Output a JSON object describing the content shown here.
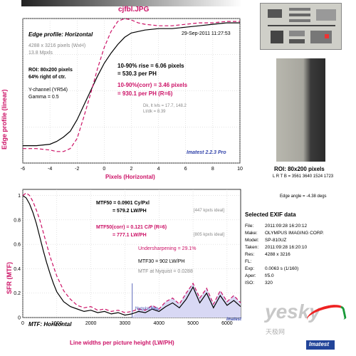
{
  "file_title": "cjfbl.JPG",
  "top_chart": {
    "heading": "Edge profile: Horizontal",
    "timestamp": "29-Sep-2011 11:27:53",
    "info": [
      "4288 x 3216 pixels (WxH)",
      "13.8 Mpxls"
    ],
    "roi_line1": "ROI: 80x200 pixels",
    "roi_line2": "64% right of ctr.",
    "channel": "Y-channel (YR54)",
    "gamma": "Gamma = 0.5",
    "rise_label": "10-90% rise = 6.06 pixels",
    "rise_ph": "= 530.3 per PH",
    "corr_label": "10-90%(corr) = 3.46 pixels",
    "corr_ph": "= 930.1 per PH  (R=6)",
    "dk_lt": "Dk, lt lvls = 17.7, 148.2",
    "lt_dk": "Lt/dk = 8.39",
    "brand": "Imatest 2.2.3 Pro"
  },
  "bottom_chart": {
    "mtf50": "MTF50 = 0.0901 Cy/Pxl",
    "mtf50_lw": "= 579.2 LW/PH",
    "mtf50_ideal": "[447 kpxls ideal]",
    "mtf50c": "MTF50(corr) = 0.121 C/P  (R=6)",
    "mtf50c_lw": "= 777.1 LW/PH",
    "mtf50c_ideal": "[805 kpxls ideal]",
    "undersharp": "Undersharpening = 29.1%",
    "mtf30": "MTF30 = 902 LW/PH",
    "nyq": "MTF at Nyquist = 0.0288",
    "nyq_label": "Nyquist freq.",
    "footer_label": "MTF: Horizontal",
    "brand": "Imatest"
  },
  "side": {
    "roi_caption": "ROI: 80x200 pixels",
    "lrtb": "L R T B = 3561 3640  1524 1723",
    "edge_angle": "Edge angle = -4.38 degs",
    "exif_title": "Selected EXIF data",
    "exif": [
      {
        "k": "File:",
        "v": "2011:09:28 16:20:12"
      },
      {
        "k": "Make:",
        "v": "OLYMPUS IMAGING CORP."
      },
      {
        "k": "Model:",
        "v": "SP-810UZ"
      },
      {
        "k": "Taken:",
        "v": "2011:09:28 16:20:10"
      },
      {
        "k": "Res:",
        "v": "4288 x 3216"
      },
      {
        "k": "FL:",
        "v": ""
      },
      {
        "k": "Exp:",
        "v": "0.0063 s  (1/160)"
      },
      {
        "k": "Aper:",
        "v": "f/5.0"
      },
      {
        "k": "ISO:",
        "v": "320"
      }
    ],
    "watermark": "yesky",
    "watermark_sub": "天极网"
  },
  "chart_data": [
    {
      "type": "line",
      "xlabel": "Pixels (Horizontal)",
      "ylabel": "Edge profile (linear)",
      "xlim": [
        -6,
        10
      ],
      "ylim": [
        0,
        1
      ],
      "xticks": [
        "-6",
        "-4",
        "-2",
        "0",
        "2",
        "4",
        "6",
        "8",
        "10"
      ],
      "grid": true,
      "series": [
        {
          "color": "#000000",
          "dash": false,
          "x": [
            -6,
            -5,
            -4,
            -3.5,
            -3,
            -2.5,
            -2,
            -1.5,
            -1,
            -0.5,
            0,
            0.5,
            1,
            1.5,
            2,
            3,
            4,
            5,
            6,
            7,
            8,
            9,
            10
          ],
          "y": [
            0.12,
            0.12,
            0.13,
            0.15,
            0.18,
            0.22,
            0.3,
            0.4,
            0.5,
            0.6,
            0.69,
            0.76,
            0.82,
            0.87,
            0.9,
            0.92,
            0.93,
            0.93,
            0.94,
            0.95,
            0.96,
            0.97,
            0.97
          ]
        },
        {
          "color": "#cc1166",
          "dash": true,
          "x": [
            -6,
            -5,
            -4,
            -3.5,
            -3,
            -2.5,
            -2,
            -1.5,
            -1,
            -0.5,
            0,
            0.5,
            1,
            1.5,
            2,
            2.5,
            3,
            4,
            5,
            6,
            7,
            8,
            9,
            10
          ],
          "y": [
            0.1,
            0.1,
            0.09,
            0.08,
            0.08,
            0.1,
            0.17,
            0.32,
            0.48,
            0.65,
            0.8,
            0.91,
            0.98,
            1.0,
            0.99,
            0.97,
            0.96,
            0.95,
            0.95,
            0.96,
            0.97,
            0.97,
            0.98,
            0.98
          ]
        }
      ]
    },
    {
      "type": "line",
      "xlabel": "Line widths per picture height (LW/PH)",
      "ylabel": "SFR (MTF)",
      "xlim": [
        0,
        6400
      ],
      "ylim": [
        0,
        1.05
      ],
      "xticks": [
        "0",
        "1000",
        "2000",
        "3000",
        "4000",
        "5000",
        "6000"
      ],
      "yticks": [
        "0",
        "0.2",
        "0.4",
        "0.6",
        "0.8",
        "1"
      ],
      "grid": true,
      "nyquist_x": 3216,
      "series": [
        {
          "color": "#000000",
          "dash": false,
          "x": [
            0,
            100,
            200,
            300,
            400,
            500,
            600,
            700,
            800,
            900,
            1000,
            1200,
            1400,
            1600,
            1800,
            2000,
            2200,
            2400,
            2600,
            2800,
            3000,
            3200,
            3400,
            3600,
            3800,
            4000,
            4200,
            4400,
            4600,
            4800,
            5000,
            5200,
            5400,
            5600,
            5800,
            6000,
            6200,
            6400
          ],
          "y": [
            1.0,
            0.98,
            0.93,
            0.86,
            0.77,
            0.66,
            0.55,
            0.45,
            0.36,
            0.28,
            0.21,
            0.13,
            0.09,
            0.07,
            0.05,
            0.06,
            0.04,
            0.05,
            0.03,
            0.04,
            0.02,
            0.03,
            0.05,
            0.04,
            0.07,
            0.05,
            0.09,
            0.12,
            0.08,
            0.15,
            0.25,
            0.12,
            0.2,
            0.08,
            0.18,
            0.1,
            0.14,
            0.09
          ]
        },
        {
          "color": "#cc1166",
          "dash": true,
          "x": [
            0,
            100,
            200,
            300,
            400,
            500,
            600,
            700,
            800,
            900,
            1000,
            1200,
            1400,
            1600,
            1800,
            2000,
            2200,
            2400,
            2600,
            2800,
            3000,
            3200,
            3400,
            3600,
            3800,
            4000,
            4200,
            4400,
            4600,
            4800,
            5000,
            5200,
            5400,
            5600,
            5800,
            6000,
            6200,
            6400
          ],
          "y": [
            1.0,
            1.02,
            1.0,
            0.95,
            0.88,
            0.8,
            0.7,
            0.6,
            0.5,
            0.42,
            0.34,
            0.22,
            0.15,
            0.1,
            0.08,
            0.09,
            0.06,
            0.07,
            0.05,
            0.06,
            0.04,
            0.05,
            0.07,
            0.06,
            0.1,
            0.07,
            0.13,
            0.16,
            0.11,
            0.2,
            0.28,
            0.16,
            0.24,
            0.11,
            0.22,
            0.13,
            0.18,
            0.12
          ]
        }
      ]
    }
  ]
}
